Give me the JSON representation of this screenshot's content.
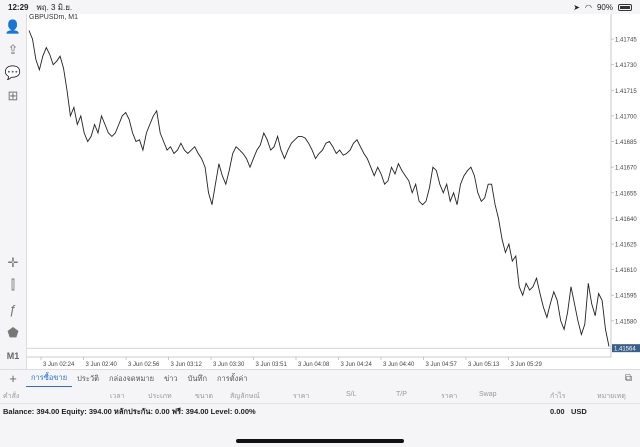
{
  "status_bar": {
    "time": "12:29",
    "date": "พฤ. 3 มิ.ย.",
    "battery": "90%",
    "icons": [
      "wifi-icon",
      "location-icon",
      "battery-icon"
    ]
  },
  "toolbar": {
    "items": [
      {
        "name": "account-icon",
        "glyph": "👤"
      },
      {
        "name": "trade-icon",
        "glyph": "⇪"
      },
      {
        "name": "chat-icon",
        "glyph": "💬"
      },
      {
        "name": "new-order-icon",
        "glyph": "⊞"
      },
      {
        "name": "crosshair-icon",
        "glyph": "✛"
      },
      {
        "name": "chart-type-icon",
        "glyph": "⫿"
      },
      {
        "name": "indicators-icon",
        "glyph": "ƒ"
      },
      {
        "name": "objects-icon",
        "glyph": "⬟"
      }
    ],
    "timeframe": "M1"
  },
  "chart_data": {
    "type": "line",
    "symbol_title": "GBPUSDm, M1",
    "ylim": [
      1.4156,
      1.41755
    ],
    "y_ticks": [
      "1.41745",
      "1.41730",
      "1.41715",
      "1.41700",
      "1.41685",
      "1.41670",
      "1.41655",
      "1.41640",
      "1.41625",
      "1.41610",
      "1.41595",
      "1.41580"
    ],
    "x_ticks": [
      "3 Jun 02:24",
      "3 Jun 02:40",
      "3 Jun 02:56",
      "3 Jun 03:12",
      "3 Jun 03:30",
      "3 Jun 03:51",
      "3 Jun 04:08",
      "3 Jun 04:24",
      "3 Jun 04:40",
      "3 Jun 04:57",
      "3 Jun 05:13",
      "3 Jun 05:29"
    ],
    "current_price": "1.41564",
    "values": [
      1.4175,
      1.41745,
      1.41733,
      1.41727,
      1.41735,
      1.4174,
      1.41736,
      1.4173,
      1.41732,
      1.41735,
      1.41728,
      1.41715,
      1.417,
      1.41705,
      1.41695,
      1.417,
      1.4169,
      1.41685,
      1.41688,
      1.41695,
      1.4169,
      1.417,
      1.41695,
      1.4169,
      1.41688,
      1.4169,
      1.41695,
      1.417,
      1.41702,
      1.41698,
      1.4169,
      1.41685,
      1.41686,
      1.4168,
      1.4169,
      1.41695,
      1.417,
      1.41703,
      1.4169,
      1.41685,
      1.4168,
      1.41682,
      1.41678,
      1.4168,
      1.41684,
      1.4168,
      1.41678,
      1.4168,
      1.41682,
      1.41678,
      1.41675,
      1.4167,
      1.41655,
      1.41648,
      1.4166,
      1.41672,
      1.41665,
      1.4166,
      1.41668,
      1.41678,
      1.41682,
      1.4168,
      1.41678,
      1.41675,
      1.4167,
      1.41675,
      1.4168,
      1.41683,
      1.4169,
      1.41686,
      1.4168,
      1.41682,
      1.41688,
      1.4168,
      1.41675,
      1.4168,
      1.41684,
      1.41686,
      1.41688,
      1.41688,
      1.41687,
      1.41684,
      1.4168,
      1.41675,
      1.41678,
      1.4168,
      1.41684,
      1.41685,
      1.41682,
      1.41678,
      1.4168,
      1.41677,
      1.41678,
      1.4168,
      1.41684,
      1.41686,
      1.41682,
      1.41678,
      1.41675,
      1.4167,
      1.41665,
      1.4167,
      1.41666,
      1.4166,
      1.41662,
      1.4167,
      1.41666,
      1.41672,
      1.41668,
      1.41665,
      1.41662,
      1.41655,
      1.4166,
      1.4165,
      1.41648,
      1.4165,
      1.41658,
      1.4167,
      1.41668,
      1.4166,
      1.41655,
      1.4166,
      1.4165,
      1.41655,
      1.41648,
      1.4166,
      1.41665,
      1.41668,
      1.4167,
      1.41665,
      1.41655,
      1.4165,
      1.41652,
      1.4166,
      1.4166,
      1.41648,
      1.4164,
      1.41628,
      1.4162,
      1.41625,
      1.41615,
      1.41618,
      1.416,
      1.41595,
      1.41602,
      1.41598,
      1.416,
      1.41605,
      1.41596,
      1.41588,
      1.41582,
      1.4159,
      1.41597,
      1.41592,
      1.4158,
      1.41575,
      1.41585,
      1.416,
      1.4159,
      1.4158,
      1.41572,
      1.41578,
      1.41602,
      1.4159,
      1.41583,
      1.41596,
      1.41592,
      1.41575,
      1.41565
    ]
  },
  "bottom_tabs": {
    "add_label": "+",
    "items": [
      {
        "label": "การซื้อขาย",
        "active": true
      },
      {
        "label": "ประวัติ",
        "active": false
      },
      {
        "label": "กล่องจดหมาย",
        "active": false
      },
      {
        "label": "ข่าว",
        "active": false
      },
      {
        "label": "บันทึก",
        "active": false
      },
      {
        "label": "การตั้งค่า",
        "active": false
      }
    ]
  },
  "table_headers": [
    "คำสั่ง",
    "เวลา",
    "ประเภท",
    "ขนาด",
    "สัญลักษณ์",
    "ราคา",
    "S/L",
    "T/P",
    "ราคา",
    "Swap",
    "กำไร",
    "หมายเหตุ"
  ],
  "balance": {
    "text": "Balance: 394.00 Equity: 394.00 หลักประกัน: 0.00 ฟรี: 394.00 Level: 0.00%",
    "profit": "0.00",
    "currency": "USD"
  }
}
